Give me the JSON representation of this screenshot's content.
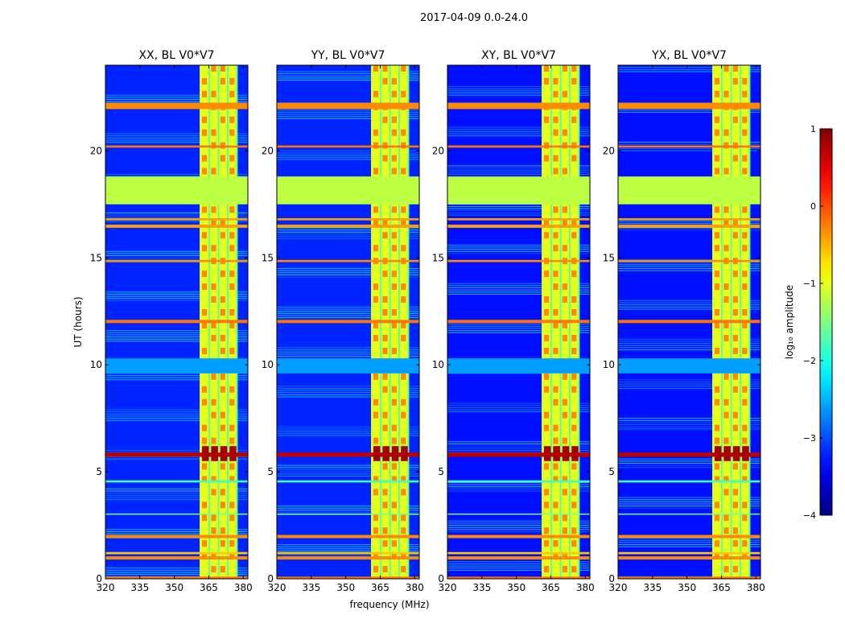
{
  "figure_title": "2017-04-09 0.0-24.0",
  "chart_data": {
    "type": "heatmap",
    "x_axis": {
      "label": "frequency (MHz)",
      "range": [
        320,
        382
      ],
      "ticks": [
        320,
        335,
        350,
        365,
        380
      ]
    },
    "y_axis": {
      "label": "UT (hours)",
      "range": [
        0,
        24
      ],
      "ticks": [
        0,
        5,
        10,
        15,
        20
      ]
    },
    "colorbar": {
      "label": "log₁₀ amplitude",
      "range": [
        -4,
        1
      ],
      "ticks": [
        -4,
        -3,
        -2,
        -1,
        0,
        1
      ],
      "tick_labels": [
        "−4",
        "−3",
        "−2",
        "−1",
        "0",
        "1"
      ],
      "colormap": "jet"
    },
    "panels": [
      {
        "title": "XX, BL V0*V7",
        "background_level": -3.2
      },
      {
        "title": "YY, BL V0*V7",
        "background_level": -3.2
      },
      {
        "title": "XY, BL V0*V7",
        "background_level": -3.3
      },
      {
        "title": "YX, BL V0*V7",
        "background_level": -3.3
      }
    ],
    "bright_frequency_band_mhz": [
      361,
      377
    ],
    "bright_band_level": -1.0,
    "flagged_gap_hours": [
      17.5,
      18.8
    ],
    "flagged_gap_level": -1.2,
    "rfi_time_bands": [
      {
        "t0": 0.0,
        "t1": 0.1,
        "level": -0.2
      },
      {
        "t0": 0.9,
        "t1": 1.05,
        "level": -0.3
      },
      {
        "t0": 1.15,
        "t1": 1.25,
        "level": -0.6
      },
      {
        "t0": 1.9,
        "t1": 2.05,
        "level": -0.3
      },
      {
        "t0": 3.0,
        "t1": 3.05,
        "level": -1.5
      },
      {
        "t0": 4.5,
        "t1": 4.6,
        "level": -1.8
      },
      {
        "t0": 5.7,
        "t1": 5.9,
        "level": 0.7
      },
      {
        "t0": 9.6,
        "t1": 10.3,
        "level": -2.6
      },
      {
        "t0": 11.95,
        "t1": 12.1,
        "level": -0.2
      },
      {
        "t0": 14.8,
        "t1": 14.9,
        "level": -0.3
      },
      {
        "t0": 16.4,
        "t1": 16.55,
        "level": -0.4
      },
      {
        "t0": 16.75,
        "t1": 16.85,
        "level": -0.4
      },
      {
        "t0": 20.15,
        "t1": 20.25,
        "level": -0.2
      },
      {
        "t0": 21.95,
        "t1": 22.25,
        "level": -0.3
      }
    ],
    "hot_block_hours": [
      5.5,
      6.2
    ],
    "hot_block_level": 0.8
  }
}
